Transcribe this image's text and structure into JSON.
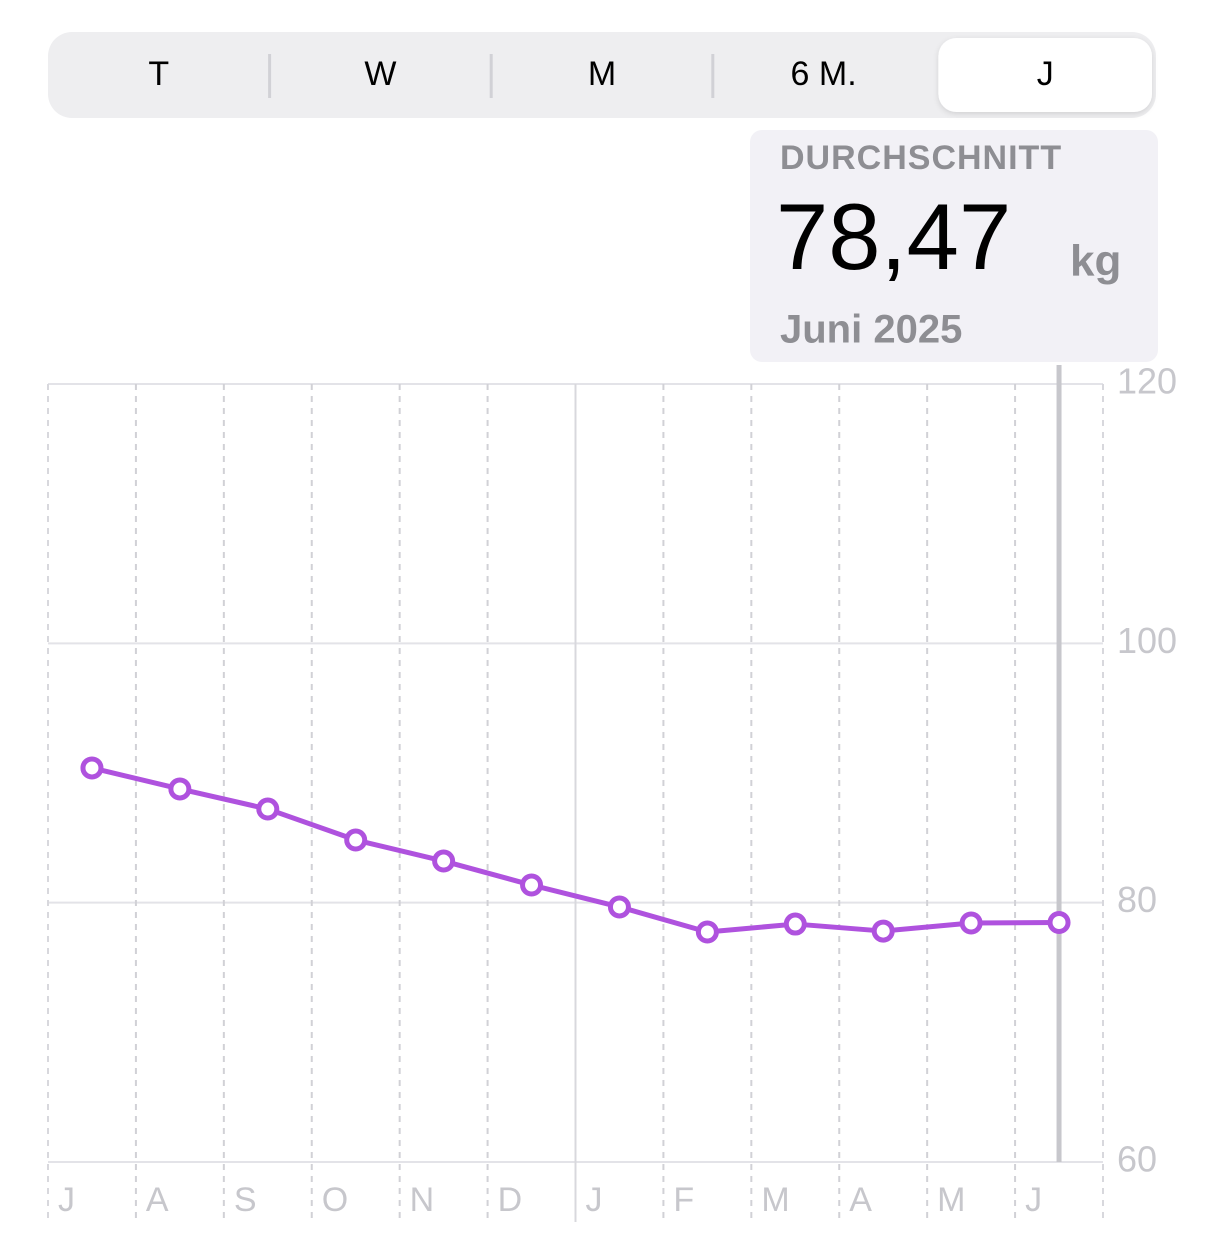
{
  "segments": [
    "T",
    "W",
    "M",
    "6 M.",
    "J"
  ],
  "selected_index": 4,
  "callout": {
    "label": "DURCHSCHNITT",
    "value": "78,47",
    "unit": "kg",
    "period": "Juni 2025"
  },
  "chart_data": {
    "type": "line",
    "categories": [
      "J",
      "A",
      "S",
      "O",
      "N",
      "D",
      "J",
      "F",
      "M",
      "A",
      "M",
      "J"
    ],
    "values": [
      90.39,
      88.77,
      87.22,
      84.83,
      83.21,
      81.36,
      79.67,
      77.74,
      78.35,
      77.81,
      78.43,
      78.47
    ],
    "color": "#af52de",
    "ylim": [
      60,
      120
    ],
    "yticks": [
      60,
      80,
      100,
      120
    ],
    "grid": true,
    "selected_index": 11
  }
}
